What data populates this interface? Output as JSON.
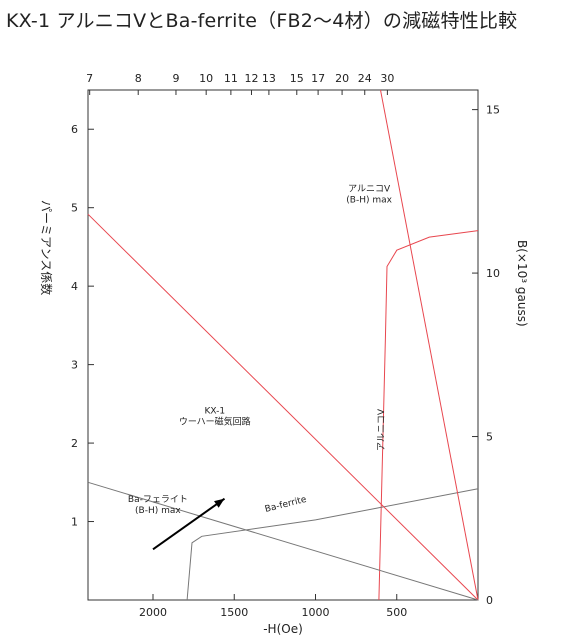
{
  "chart_data": {
    "type": "line",
    "title": "KX-1 アルニコⅤとBa-ferrite（FB2〜4材）の減磁特性比較",
    "xlabel": "-H(Oe)",
    "ylabel_left": "パーミアンス係数",
    "ylabel_right": "B(×10³ gauss)",
    "xlim": [
      2400,
      0
    ],
    "ylim_left": [
      0,
      6.5
    ],
    "ylim_right": [
      0,
      15.6
    ],
    "x_ticks": [
      2000,
      1500,
      1000,
      500
    ],
    "x_tick_labels": [
      "2000",
      "1500",
      "1000",
      "500"
    ],
    "y_left_ticks": [
      1,
      2,
      3,
      4,
      5,
      6
    ],
    "y_left_tick_labels": [
      "1",
      "2",
      "3",
      "4",
      "5",
      "6"
    ],
    "y_right_ticks": [
      0,
      5,
      10,
      15
    ],
    "y_right_tick_labels": [
      "0",
      "5",
      "10",
      "15"
    ],
    "top_axis_label_list": [
      "7",
      "8",
      "9",
      "10",
      "11",
      "12",
      "13",
      "15",
      "17",
      "20",
      "24",
      "30"
    ],
    "top_axis_values": [
      7,
      8,
      9,
      10,
      11,
      12,
      13,
      15,
      17,
      20,
      24,
      30
    ],
    "series": [
      {
        "name": "アルニコⅤ",
        "color": "#e8474f",
        "points": [
          [
            610,
            0
          ],
          [
            570,
            8
          ],
          [
            560,
            10.2
          ],
          [
            500,
            10.7
          ],
          [
            300,
            11.1
          ],
          [
            0,
            11.3
          ]
        ]
      },
      {
        "name": "Ba-ferrite",
        "color": "#777777",
        "points": [
          [
            1790,
            0
          ],
          [
            1760,
            1.75
          ],
          [
            1700,
            1.95
          ],
          [
            1000,
            2.45
          ],
          [
            0,
            3.4
          ]
        ]
      },
      {
        "name": "KX-1 ウーハー磁気回路",
        "color": "#e8474f",
        "points": [
          [
            2400,
            11.8
          ],
          [
            0,
            0
          ]
        ]
      },
      {
        "name": "アルニコⅤ (B-H)max",
        "color": "#e8474f",
        "points": [
          [
            600,
            15.6
          ],
          [
            0,
            0
          ]
        ]
      },
      {
        "name": "Ba-フェライト (B-H)max",
        "color": "#777777",
        "points": [
          [
            2400,
            3.6
          ],
          [
            0,
            0
          ]
        ]
      }
    ],
    "annotations": [
      {
        "lines": [
          "アルニコV",
          "(B-H) max"
        ],
        "at": [
          670,
          12.5
        ]
      },
      {
        "lines": [
          "アルニコV"
        ],
        "at": [
          580,
          5.2
        ],
        "rotated": true
      },
      {
        "lines": [
          "KX-1",
          "ウーハー磁気回路"
        ],
        "at": [
          1620,
          5.7
        ]
      },
      {
        "lines": [
          "Ba-フェライト",
          "(B-H) max"
        ],
        "at": [
          1970,
          3.0
        ]
      },
      {
        "lines": [
          "Ba-ferrite"
        ],
        "at": [
          1180,
          2.85
        ],
        "rotated": true
      }
    ],
    "arrow": {
      "from": [
        2000,
        1.55
      ],
      "to": [
        1560,
        3.1
      ]
    },
    "grid": false,
    "legend": "none"
  }
}
